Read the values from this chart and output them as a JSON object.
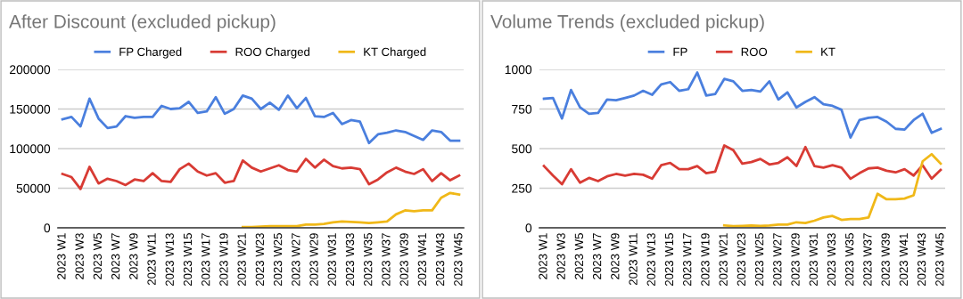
{
  "chart_data": [
    {
      "type": "line",
      "title": "After Discount (excluded pickup)",
      "categories": [
        "2023 W1",
        null,
        "2023 W3",
        null,
        "2023 W5",
        null,
        "2023 W7",
        null,
        "2023 W9",
        null,
        "2023 W11",
        null,
        "2023 W13",
        null,
        "2023 W15",
        null,
        "2023 W17",
        null,
        "2023 W19",
        null,
        "2023 W21",
        null,
        "2023 W23",
        null,
        "2023 W25",
        null,
        "2023 W27",
        null,
        "2023 W29",
        null,
        "2023 W31",
        null,
        "2023 W33",
        null,
        "2023 W35",
        null,
        "2023 W37",
        null,
        "2023 W39",
        null,
        "2023 W41",
        null,
        "2023 W43",
        null,
        "2023 W45"
      ],
      "series": [
        {
          "name": "FP Charged",
          "color": "#4a7fde",
          "values": [
            137000,
            140000,
            128000,
            163000,
            138000,
            126000,
            128000,
            141000,
            139000,
            140000,
            140000,
            154000,
            150000,
            151000,
            159000,
            145000,
            147000,
            165000,
            144000,
            150000,
            167000,
            163000,
            150000,
            158000,
            149000,
            167000,
            151000,
            164000,
            141000,
            140000,
            145000,
            131000,
            136000,
            134000,
            107000,
            118000,
            120000,
            123000,
            121000,
            116000,
            111000,
            123000,
            121000,
            110000,
            110000
          ]
        },
        {
          "name": "ROO Charged",
          "color": "#d83b34",
          "values": [
            68000,
            64000,
            49000,
            77000,
            56000,
            62000,
            59000,
            54000,
            61000,
            59000,
            69000,
            59000,
            58000,
            74000,
            81000,
            71000,
            66000,
            69000,
            57000,
            59000,
            85000,
            76000,
            71000,
            75000,
            79000,
            73000,
            71000,
            87000,
            76000,
            86000,
            78000,
            75000,
            76000,
            74000,
            55000,
            61000,
            70000,
            76000,
            71000,
            68000,
            74000,
            59000,
            69000,
            60000,
            66000
          ]
        },
        {
          "name": "KT Charged",
          "color": "#f0b818",
          "values": [
            null,
            null,
            null,
            null,
            null,
            null,
            null,
            null,
            null,
            null,
            null,
            null,
            null,
            null,
            null,
            null,
            null,
            null,
            null,
            null,
            1000,
            1000,
            1500,
            2000,
            2000,
            2000,
            2000,
            4000,
            4000,
            5000,
            7000,
            8000,
            7500,
            7000,
            6000,
            7000,
            8000,
            17000,
            22000,
            21000,
            22000,
            22000,
            38000,
            44000,
            42000
          ]
        }
      ],
      "ylim": [
        0,
        200000
      ],
      "yticks": [
        0,
        50000,
        100000,
        150000,
        200000
      ],
      "grid": "y",
      "legend": "top"
    },
    {
      "type": "line",
      "title": "Volume Trends (excluded pickup)",
      "categories": [
        "2023 W1",
        null,
        "2023 W3",
        null,
        "2023 W5",
        null,
        "2023 W7",
        null,
        "2023 W9",
        null,
        "2023 W11",
        null,
        "2023 W13",
        null,
        "2023 W15",
        null,
        "2023 W17",
        null,
        "2023 W19",
        null,
        "2023 W21",
        null,
        "2023 W23",
        null,
        "2023 W25",
        null,
        "2023 W27",
        null,
        "2023 W29",
        null,
        "2023 W31",
        null,
        "2023 W33",
        null,
        "2023 W35",
        null,
        "2023 W37",
        null,
        "2023 W39",
        null,
        "2023 W41",
        null,
        "2023 W43",
        null,
        "2023 W45"
      ],
      "series": [
        {
          "name": "FP",
          "color": "#4a7fde",
          "values": [
            815,
            820,
            690,
            870,
            760,
            720,
            725,
            810,
            805,
            820,
            835,
            865,
            840,
            905,
            920,
            865,
            875,
            980,
            835,
            845,
            940,
            925,
            865,
            870,
            860,
            925,
            810,
            855,
            760,
            795,
            825,
            780,
            770,
            745,
            570,
            680,
            695,
            700,
            670,
            625,
            620,
            680,
            720,
            600,
            625
          ]
        },
        {
          "name": "ROO",
          "color": "#d83b34",
          "values": [
            390,
            330,
            275,
            370,
            285,
            315,
            295,
            325,
            340,
            330,
            340,
            335,
            310,
            395,
            410,
            370,
            370,
            390,
            345,
            355,
            520,
            490,
            405,
            415,
            435,
            400,
            410,
            445,
            390,
            510,
            390,
            380,
            395,
            380,
            310,
            345,
            375,
            380,
            360,
            350,
            370,
            330,
            395,
            310,
            365
          ]
        },
        {
          "name": "KT",
          "color": "#f0b818",
          "values": [
            null,
            null,
            null,
            null,
            null,
            null,
            null,
            null,
            null,
            null,
            null,
            null,
            null,
            null,
            null,
            null,
            null,
            null,
            null,
            null,
            15,
            10,
            12,
            15,
            12,
            15,
            20,
            20,
            35,
            30,
            45,
            65,
            75,
            50,
            55,
            55,
            65,
            215,
            180,
            180,
            185,
            205,
            420,
            465,
            405
          ]
        }
      ],
      "ylim": [
        0,
        1000
      ],
      "yticks": [
        0,
        250,
        500,
        750,
        1000
      ],
      "grid": "y",
      "legend": "top"
    }
  ]
}
